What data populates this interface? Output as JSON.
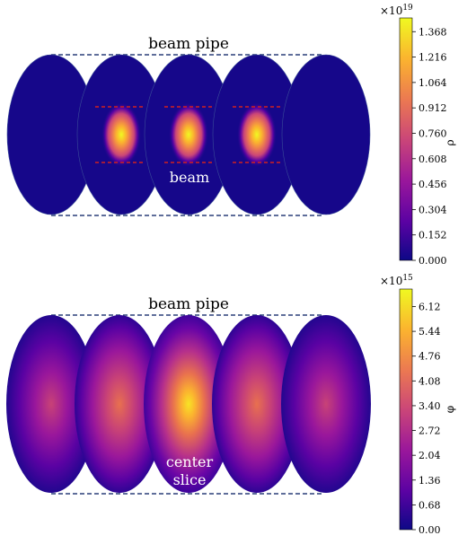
{
  "top_panel": {
    "label_pipe": "beam pipe",
    "label_beam": "beam",
    "colorbar": {
      "exponent_base": "×10",
      "exponent_power": "19",
      "symbol": "ρ",
      "ticks": [
        "0.000",
        "0.152",
        "0.304",
        "0.456",
        "0.608",
        "0.760",
        "0.912",
        "1.064",
        "1.216",
        "1.368"
      ],
      "range": [
        0.0,
        1.45
      ]
    },
    "slices": [
      {
        "peak_fraction": 0.0,
        "has_beam": false
      },
      {
        "peak_fraction": 1.0,
        "has_beam": true
      },
      {
        "peak_fraction": 1.0,
        "has_beam": true
      },
      {
        "peak_fraction": 1.0,
        "has_beam": true
      },
      {
        "peak_fraction": 0.0,
        "has_beam": false
      }
    ]
  },
  "bottom_panel": {
    "label_pipe": "beam pipe",
    "label_center_line1": "center",
    "label_center_line2": "slice",
    "colorbar": {
      "exponent_base": "×10",
      "exponent_power": "15",
      "symbol": "φ",
      "ticks": [
        "0.00",
        "0.68",
        "1.36",
        "2.04",
        "2.72",
        "3.40",
        "4.08",
        "4.76",
        "5.44",
        "6.12"
      ],
      "range": [
        0.0,
        6.6
      ]
    },
    "slices": [
      {
        "peak_fraction": 0.45
      },
      {
        "peak_fraction": 0.65
      },
      {
        "peak_fraction": 1.0
      },
      {
        "peak_fraction": 0.65
      },
      {
        "peak_fraction": 0.45
      }
    ]
  },
  "colors": {
    "pipe_dash": "#2a3f78",
    "beam_marker": "#d02020",
    "plasma": [
      "#0d0887",
      "#5b02a3",
      "#9a179b",
      "#cb4678",
      "#eb7852",
      "#fbb32f",
      "#f0f921"
    ]
  }
}
